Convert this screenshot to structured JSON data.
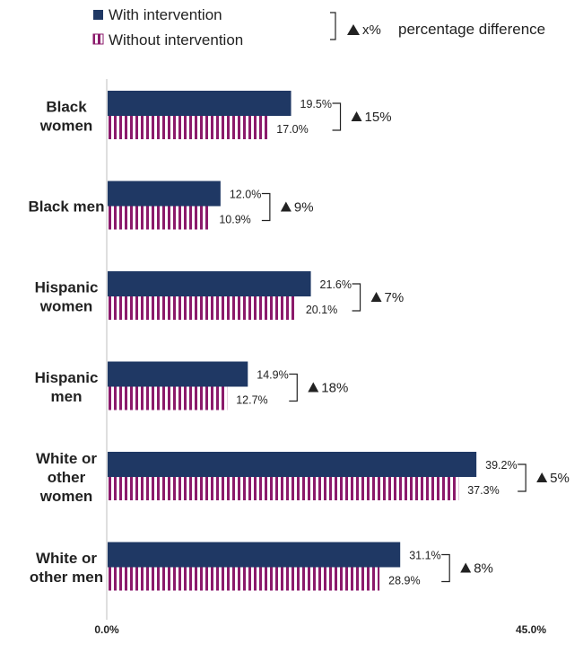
{
  "legend": {
    "with_label": "With intervention",
    "without_label": "Without intervention",
    "key_symbol": "x%",
    "key_text": "percentage difference"
  },
  "colors": {
    "with": "#1f3864",
    "without_stripe": "#8b1a6b",
    "axis": "#bfbfbf",
    "text": "#222222"
  },
  "chart_data": {
    "type": "bar",
    "orientation": "horizontal",
    "categories": [
      [
        "Black",
        "women"
      ],
      [
        "Black men"
      ],
      [
        "Hispanic",
        "women"
      ],
      [
        "Hispanic",
        "men"
      ],
      [
        "White or",
        "other",
        "women"
      ],
      [
        "White or",
        "other men"
      ]
    ],
    "series": [
      {
        "name": "With intervention",
        "values": [
          19.5,
          12.0,
          21.6,
          14.9,
          39.2,
          31.1
        ],
        "labels": [
          "19.5%",
          "12.0%",
          "21.6%",
          "14.9%",
          "39.2%",
          "31.1%"
        ]
      },
      {
        "name": "Without intervention",
        "values": [
          17.0,
          10.9,
          20.1,
          12.7,
          37.3,
          28.9
        ],
        "labels": [
          "17.0%",
          "10.9%",
          "20.1%",
          "12.7%",
          "37.3%",
          "28.9%"
        ]
      }
    ],
    "differences": [
      "15%",
      "9%",
      "7%",
      "18%",
      "5%",
      "8%"
    ],
    "xlim": [
      0,
      45
    ],
    "xtick_labels": [
      "0.0%",
      "45.0%"
    ],
    "legend_position": "top"
  }
}
